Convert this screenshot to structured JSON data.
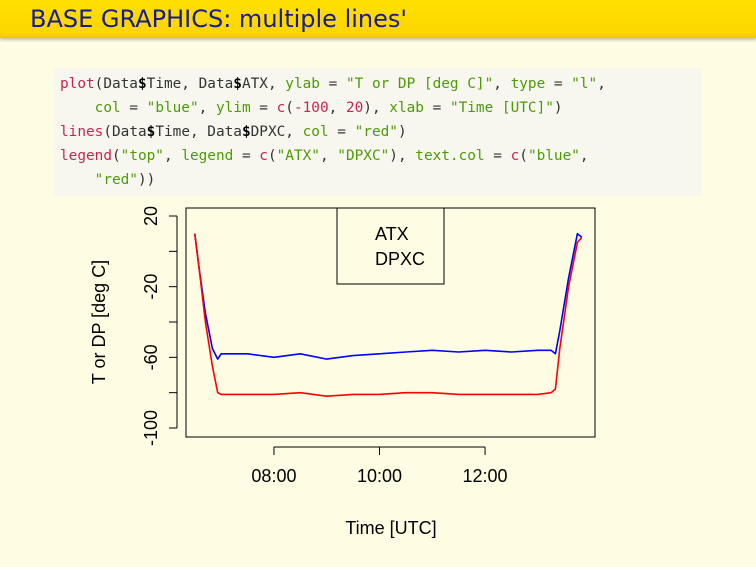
{
  "slide": {
    "title": "BASE GRAPHICS: multiple lines'"
  },
  "code": {
    "lines": [
      "plot(Data$Time, Data$ATX, ylab = \"T or DP [deg C]\", type = \"l\",",
      "    col = \"blue\", ylim = c(-100, 20), xlab = \"Time [UTC]\")",
      "lines(Data$Time, Data$DPXC, col = \"red\")",
      "legend(\"top\", legend = c(\"ATX\", \"DPXC\"), text.col = c(\"blue\",",
      "    \"red\"))"
    ]
  },
  "colors": {
    "title_bar": "#ffd800",
    "title_text": "#1a1a8c",
    "background": "#fefde3",
    "code_bg": "#f7f7ef",
    "atx": "#0000ff",
    "dpxc": "#ff0000"
  },
  "chart_data": {
    "type": "line",
    "xlabel": "Time [UTC]",
    "ylabel": "T or DP [deg C]",
    "ylim": [
      -100,
      20
    ],
    "xlim": [
      "06:20",
      "14:05"
    ],
    "x_ticks": [
      "08:00",
      "10:00",
      "12:00"
    ],
    "y_ticks": [
      "-100",
      "-60",
      "-20",
      "20"
    ],
    "legend": {
      "placement": "top",
      "entries": [
        "ATX",
        "DPXC"
      ]
    },
    "grid": false,
    "series": [
      {
        "name": "ATX",
        "color": "#0000ff",
        "x": [
          "06:30",
          "06:35",
          "06:42",
          "06:50",
          "06:56",
          "07:00",
          "07:05",
          "07:30",
          "08:00",
          "08:30",
          "09:00",
          "09:30",
          "10:00",
          "10:30",
          "11:00",
          "11:30",
          "12:00",
          "12:30",
          "13:00",
          "13:15",
          "13:20",
          "13:25",
          "13:35",
          "13:45",
          "13:50"
        ],
        "y": [
          10,
          -10,
          -35,
          -55,
          -61,
          -58,
          -58,
          -58,
          -60,
          -58,
          -61,
          -59,
          -58,
          -57,
          -56,
          -57,
          -56,
          -57,
          -56,
          -56,
          -58,
          -45,
          -15,
          10,
          8
        ]
      },
      {
        "name": "DPXC",
        "color": "#ff0000",
        "x": [
          "06:30",
          "06:35",
          "06:42",
          "06:50",
          "06:56",
          "07:00",
          "07:05",
          "07:30",
          "08:00",
          "08:30",
          "09:00",
          "09:30",
          "10:00",
          "10:30",
          "11:00",
          "11:30",
          "12:00",
          "12:30",
          "13:00",
          "13:15",
          "13:20",
          "13:25",
          "13:35",
          "13:45",
          "13:50"
        ],
        "y": [
          10,
          -10,
          -40,
          -65,
          -80,
          -81,
          -81,
          -81,
          -81,
          -80,
          -82,
          -81,
          -81,
          -80,
          -80,
          -81,
          -81,
          -81,
          -81,
          -80,
          -78,
          -55,
          -20,
          5,
          8
        ]
      }
    ]
  }
}
